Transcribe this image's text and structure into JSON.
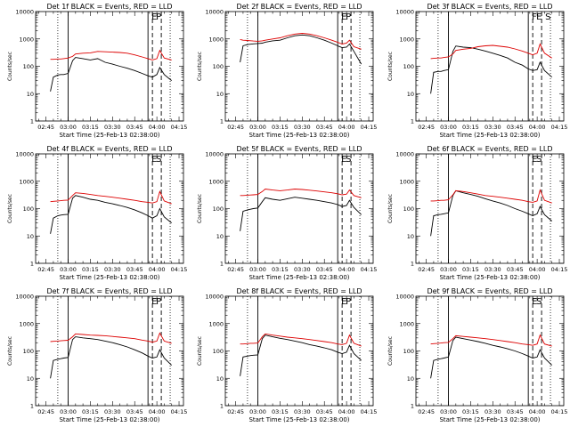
{
  "chart_data": {
    "type": "line",
    "grid": false,
    "legend": "none",
    "xlabel": "Start Time (25-Feb-13 02:38:00)",
    "ylabel": "Counts/sec",
    "y_scale": "log",
    "ylim": [
      1,
      10000
    ],
    "xlim": [
      "02:38",
      "04:18"
    ],
    "x_tick_labels": [
      "02:45",
      "03:00",
      "03:15",
      "03:30",
      "03:45",
      "04:00",
      "04:15"
    ],
    "y_tick_labels": [
      "1",
      "10",
      "100",
      "1000",
      "10000"
    ],
    "series_colors": {
      "events": "#000000",
      "lld": "#dd0000"
    },
    "vlines": [
      {
        "time": "02:53",
        "style": "dotted"
      },
      {
        "time": "03:00",
        "style": "solid"
      },
      {
        "time": "03:54",
        "style": "solid"
      },
      {
        "time": "03:57",
        "style": "dashed"
      },
      {
        "time": "04:03",
        "style": "dashed"
      },
      {
        "time": "04:09",
        "style": "dotted"
      }
    ],
    "x": [
      "02:48",
      "02:50",
      "02:53",
      "02:55",
      "02:57",
      "03:00",
      "03:03",
      "03:05",
      "03:10",
      "03:15",
      "03:20",
      "03:25",
      "03:30",
      "03:35",
      "03:40",
      "03:45",
      "03:50",
      "03:54",
      "03:57",
      "04:00",
      "04:02",
      "04:05",
      "04:10"
    ],
    "panels": [
      {
        "title": "Det 1f BLACK = Events, RED = LLD",
        "markers": [
          "E",
          "P"
        ],
        "series": [
          {
            "key": "events",
            "values": [
              12,
              40,
              48,
              50,
              50,
              55,
              160,
              210,
              190,
              170,
              190,
              140,
              120,
              100,
              85,
              70,
              55,
              45,
              40,
              50,
              90,
              50,
              30
            ]
          },
          {
            "key": "lld",
            "values": [
              180,
              180,
              185,
              185,
              190,
              200,
              230,
              280,
              300,
              310,
              350,
              340,
              330,
              320,
              300,
              260,
              220,
              190,
              170,
              190,
              380,
              200,
              170
            ]
          }
        ]
      },
      {
        "title": "Det 2f BLACK = Events, RED = LLD",
        "markers": [
          "E",
          "P"
        ],
        "series": [
          {
            "key": "events",
            "values": [
              140,
              560,
              620,
              640,
              660,
              680,
              700,
              760,
              850,
              900,
              1100,
              1300,
              1400,
              1300,
              1100,
              900,
              700,
              560,
              480,
              500,
              650,
              350,
              120
            ]
          },
          {
            "key": "lld",
            "values": [
              950,
              900,
              880,
              860,
              840,
              820,
              850,
              900,
              1000,
              1100,
              1300,
              1500,
              1600,
              1500,
              1300,
              1100,
              900,
              750,
              650,
              700,
              900,
              520,
              420
            ]
          }
        ]
      },
      {
        "title": "Det 3f BLACK = Events, RED = LLD",
        "markers": [
          "F",
          "E",
          "S"
        ],
        "series": [
          {
            "key": "events",
            "values": [
              10,
              60,
              65,
              65,
              70,
              75,
              350,
              550,
              500,
              480,
              420,
              360,
              300,
              250,
              200,
              140,
              110,
              80,
              70,
              75,
              140,
              70,
              40
            ]
          },
          {
            "key": "lld",
            "values": [
              190,
              195,
              200,
              200,
              210,
              220,
              280,
              380,
              420,
              450,
              520,
              560,
              580,
              540,
              500,
              430,
              360,
              300,
              260,
              300,
              650,
              300,
              200
            ]
          }
        ]
      },
      {
        "title": "Det 4f BLACK = Events, RED = LLD",
        "markers": [
          "E",
          "S"
        ],
        "series": [
          {
            "key": "events",
            "values": [
              12,
              45,
              55,
              58,
              60,
              62,
              240,
              300,
              260,
              220,
              200,
              170,
              150,
              130,
              110,
              90,
              70,
              55,
              45,
              55,
              100,
              50,
              30
            ]
          },
          {
            "key": "lld",
            "values": [
              180,
              185,
              190,
              195,
              200,
              205,
              300,
              380,
              360,
              330,
              300,
              280,
              260,
              240,
              220,
              200,
              180,
              170,
              160,
              180,
              420,
              190,
              150
            ]
          }
        ]
      },
      {
        "title": "Det 5f BLACK = Events, RED = LLD",
        "markers": [
          "E",
          "S"
        ],
        "series": [
          {
            "key": "events",
            "values": [
              15,
              80,
              90,
              95,
              100,
              105,
              180,
              250,
              220,
              200,
              230,
              260,
              240,
              220,
              200,
              180,
              160,
              140,
              120,
              130,
              200,
              110,
              60
            ]
          },
          {
            "key": "lld",
            "values": [
              300,
              300,
              310,
              315,
              320,
              330,
              420,
              520,
              480,
              450,
              480,
              520,
              500,
              470,
              440,
              410,
              380,
              350,
              320,
              340,
              480,
              300,
              250
            ]
          }
        ]
      },
      {
        "title": "Det 6f BLACK = Events, RED = LLD",
        "markers": [
          "E",
          "S"
        ],
        "series": [
          {
            "key": "events",
            "values": [
              10,
              55,
              60,
              62,
              65,
              70,
              300,
              450,
              380,
              330,
              280,
              230,
              190,
              160,
              130,
              100,
              80,
              65,
              55,
              65,
              120,
              60,
              35
            ]
          },
          {
            "key": "lld",
            "values": [
              190,
              190,
              195,
              200,
              200,
              210,
              320,
              450,
              420,
              380,
              340,
              300,
              280,
              260,
              240,
              220,
              200,
              180,
              170,
              190,
              480,
              200,
              160
            ]
          }
        ]
      },
      {
        "title": "Det 7f BLACK = Events, RED = LLD",
        "markers": [
          "E",
          "P"
        ],
        "series": [
          {
            "key": "events",
            "values": [
              10,
              45,
              50,
              52,
              55,
              58,
              260,
              330,
              300,
              280,
              260,
              230,
              200,
              170,
              140,
              110,
              85,
              65,
              55,
              60,
              110,
              55,
              30
            ]
          },
          {
            "key": "lld",
            "values": [
              220,
              225,
              230,
              235,
              240,
              245,
              330,
              420,
              400,
              380,
              370,
              360,
              340,
              320,
              300,
              280,
              250,
              230,
              210,
              230,
              450,
              230,
              190
            ]
          }
        ]
      },
      {
        "title": "Det 8f BLACK = Events, RED = LLD",
        "markers": [
          "E",
          "P"
        ],
        "series": [
          {
            "key": "events",
            "values": [
              12,
              60,
              65,
              68,
              70,
              72,
              280,
              380,
              330,
              290,
              260,
              230,
              200,
              170,
              150,
              130,
              110,
              90,
              80,
              90,
              160,
              80,
              45
            ]
          },
          {
            "key": "lld",
            "values": [
              180,
              180,
              185,
              190,
              190,
              195,
              330,
              420,
              380,
              350,
              320,
              300,
              280,
              260,
              240,
              220,
              200,
              180,
              170,
              190,
              380,
              190,
              150
            ]
          }
        ]
      },
      {
        "title": "Det 9f BLACK = Events, RED = LLD",
        "markers": [
          "E",
          "S"
        ],
        "series": [
          {
            "key": "events",
            "values": [
              10,
              45,
              50,
              52,
              55,
              60,
              240,
              320,
              280,
              250,
              220,
              190,
              160,
              140,
              120,
              100,
              80,
              65,
              55,
              60,
              110,
              55,
              30
            ]
          },
          {
            "key": "lld",
            "values": [
              180,
              185,
              190,
              195,
              200,
              205,
              280,
              360,
              340,
              320,
              300,
              280,
              260,
              240,
              220,
              200,
              180,
              170,
              160,
              180,
              380,
              180,
              150
            ]
          }
        ]
      }
    ]
  }
}
